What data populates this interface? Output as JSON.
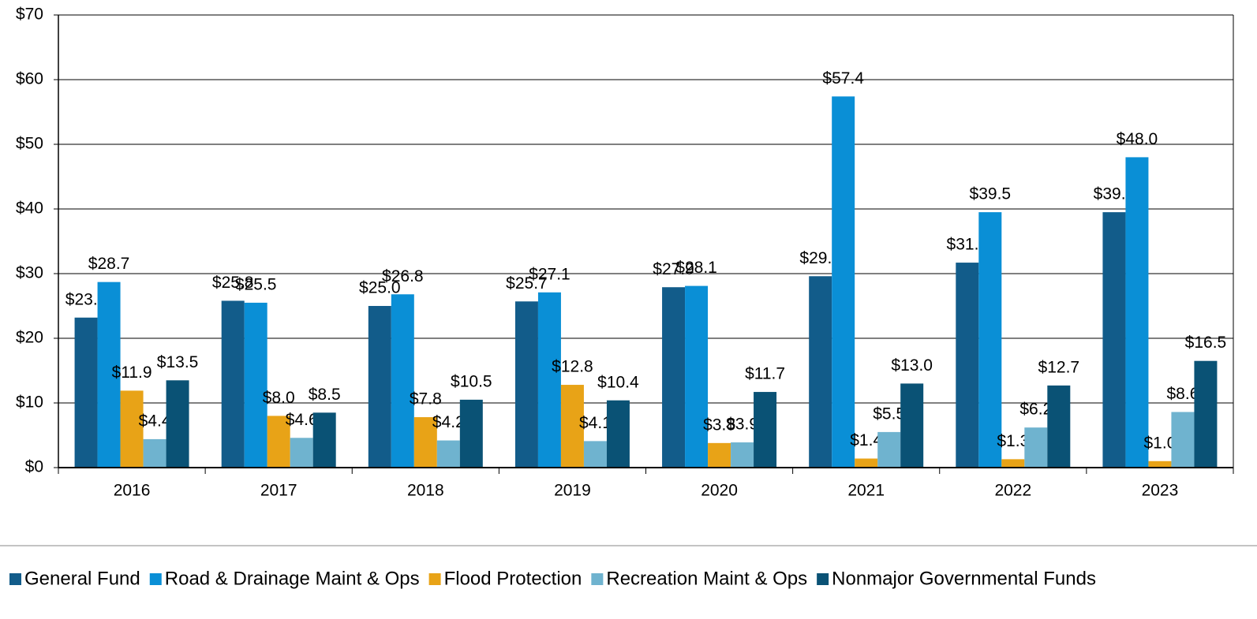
{
  "chart_data": {
    "type": "bar",
    "categories": [
      "2016",
      "2017",
      "2018",
      "2019",
      "2020",
      "2021",
      "2022",
      "2023"
    ],
    "series": [
      {
        "name": "General Fund",
        "color": "#125c8a",
        "values": [
          23.2,
          25.8,
          25.0,
          25.7,
          27.9,
          29.6,
          31.7,
          39.5
        ],
        "value_labels": [
          "$23.2",
          "$25.8",
          "$25.0",
          "$25.7",
          "$27.9",
          "$29.6",
          "$31.7",
          "$39.5"
        ]
      },
      {
        "name": "Road & Drainage Maint & Ops",
        "color": "#0a8fd6",
        "values": [
          28.7,
          25.5,
          26.8,
          27.1,
          28.1,
          57.4,
          39.5,
          48.0
        ],
        "value_labels": [
          "$28.7",
          "$25.5",
          "$26.8",
          "$27.1",
          "$28.1",
          "$57.4",
          "$39.5",
          "$48.0"
        ]
      },
      {
        "name": "Flood Protection",
        "color": "#e8a317",
        "values": [
          11.9,
          8.0,
          7.8,
          12.8,
          3.8,
          1.4,
          1.3,
          1.0
        ],
        "value_labels": [
          "$11.9",
          "$8.0",
          "$7.8",
          "$12.8",
          "$3.8",
          "$1.4",
          "$1.3",
          "$1.0"
        ]
      },
      {
        "name": "Recreation Maint & Ops",
        "color": "#6fb3cf",
        "values": [
          4.4,
          4.6,
          4.2,
          4.1,
          3.9,
          5.5,
          6.2,
          8.6
        ],
        "value_labels": [
          "$4.4",
          "$4.6",
          "$4.2",
          "$4.1",
          "$3.9",
          "$5.5",
          "$6.2",
          "$8.6"
        ]
      },
      {
        "name": "Nonmajor Governmental Funds",
        "color": "#0a5275",
        "values": [
          13.5,
          8.5,
          10.5,
          10.4,
          11.7,
          13.0,
          12.7,
          16.5
        ],
        "value_labels": [
          "$13.5",
          "$8.5",
          "$10.5",
          "$10.4",
          "$11.7",
          "$13.0",
          "$12.7",
          "$16.5"
        ]
      }
    ],
    "ylim": [
      0,
      70
    ],
    "yticks": [
      {
        "value": 0,
        "label": "$0"
      },
      {
        "value": 10,
        "label": "$10"
      },
      {
        "value": 20,
        "label": "$20"
      },
      {
        "value": 30,
        "label": "$30"
      },
      {
        "value": 40,
        "label": "$40"
      },
      {
        "value": 50,
        "label": "$50"
      },
      {
        "value": 60,
        "label": "$60"
      },
      {
        "value": 70,
        "label": "$70"
      }
    ],
    "grid": true,
    "legend": "bottom"
  }
}
